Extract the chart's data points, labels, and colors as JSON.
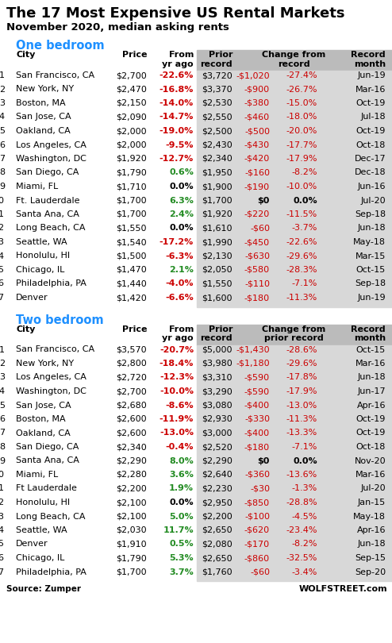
{
  "title": "The 17 Most Expensive US Rental Markets",
  "subtitle": "November 2020, median asking rents",
  "source": "Source: Zumper",
  "watermark": "WOLFSTREET.com",
  "one_bed_label": "One bedroom",
  "two_bed_label": "Two bedroom",
  "one_bed": [
    [
      "San Francisco, CA",
      "$2,700",
      "-22.6%",
      "$3,720",
      "-$1,020",
      "-27.4%",
      "Jun-19"
    ],
    [
      "New York, NY",
      "$2,470",
      "-16.8%",
      "$3,370",
      "-$900",
      "-26.7%",
      "Mar-16"
    ],
    [
      "Boston, MA",
      "$2,150",
      "-14.0%",
      "$2,530",
      "-$380",
      "-15.0%",
      "Oct-19"
    ],
    [
      "San Jose, CA",
      "$2,090",
      "-14.7%",
      "$2,550",
      "-$460",
      "-18.0%",
      "Jul-18"
    ],
    [
      "Oakland, CA",
      "$2,000",
      "-19.0%",
      "$2,500",
      "-$500",
      "-20.0%",
      "Oct-19"
    ],
    [
      "Los Angeles, CA",
      "$2,000",
      "-9.5%",
      "$2,430",
      "-$430",
      "-17.7%",
      "Oct-18"
    ],
    [
      "Washington, DC",
      "$1,920",
      "-12.7%",
      "$2,340",
      "-$420",
      "-17.9%",
      "Dec-17"
    ],
    [
      "San Diego, CA",
      "$1,790",
      "0.6%",
      "$1,950",
      "-$160",
      "-8.2%",
      "Dec-18"
    ],
    [
      "Miami, FL",
      "$1,710",
      "0.0%",
      "$1,900",
      "-$190",
      "-10.0%",
      "Jun-16"
    ],
    [
      "Ft. Lauderdale",
      "$1,700",
      "6.3%",
      "$1,700",
      "$0",
      "0.0%",
      "Jul-20"
    ],
    [
      "Santa Ana, CA",
      "$1,700",
      "2.4%",
      "$1,920",
      "-$220",
      "-11.5%",
      "Sep-18"
    ],
    [
      "Long Beach, CA",
      "$1,550",
      "0.0%",
      "$1,610",
      "-$60",
      "-3.7%",
      "Jun-18"
    ],
    [
      "Seattle, WA",
      "$1,540",
      "-17.2%",
      "$1,990",
      "-$450",
      "-22.6%",
      "May-18"
    ],
    [
      "Honolulu, HI",
      "$1,500",
      "-6.3%",
      "$2,130",
      "-$630",
      "-29.6%",
      "Mar-15"
    ],
    [
      "Chicago, IL",
      "$1,470",
      "2.1%",
      "$2,050",
      "-$580",
      "-28.3%",
      "Oct-15"
    ],
    [
      "Philadelphia, PA",
      "$1,440",
      "-4.0%",
      "$1,550",
      "-$110",
      "-7.1%",
      "Sep-18"
    ],
    [
      "Denver",
      "$1,420",
      "-6.6%",
      "$1,600",
      "-$180",
      "-11.3%",
      "Jun-19"
    ]
  ],
  "two_bed": [
    [
      "San Francisco, CA",
      "$3,570",
      "-20.7%",
      "$5,000",
      "-$1,430",
      "-28.6%",
      "Oct-15"
    ],
    [
      "New York, NY",
      "$2,800",
      "-18.4%",
      "$3,980",
      "-$1,180",
      "-29.6%",
      "Mar-16"
    ],
    [
      "Los Angeles, CA",
      "$2,720",
      "-12.3%",
      "$3,310",
      "-$590",
      "-17.8%",
      "Jun-18"
    ],
    [
      "Washington, DC",
      "$2,700",
      "-10.0%",
      "$3,290",
      "-$590",
      "-17.9%",
      "Jun-17"
    ],
    [
      "San Jose, CA",
      "$2,680",
      "-8.6%",
      "$3,080",
      "-$400",
      "-13.0%",
      "Apr-16"
    ],
    [
      "Boston, MA",
      "$2,600",
      "-11.9%",
      "$2,930",
      "-$330",
      "-11.3%",
      "Oct-19"
    ],
    [
      "Oakland, CA",
      "$2,600",
      "-13.0%",
      "$3,000",
      "-$400",
      "-13.3%",
      "Oct-19"
    ],
    [
      "San Diego, CA",
      "$2,340",
      "-0.4%",
      "$2,520",
      "-$180",
      "-7.1%",
      "Oct-18"
    ],
    [
      "Santa Ana, CA",
      "$2,290",
      "8.0%",
      "$2,290",
      "$0",
      "0.0%",
      "Nov-20"
    ],
    [
      "Miami, FL",
      "$2,280",
      "3.6%",
      "$2,640",
      "-$360",
      "-13.6%",
      "Mar-16"
    ],
    [
      "Ft Lauderdale",
      "$2,200",
      "1.9%",
      "$2,230",
      "-$30",
      "-1.3%",
      "Jul-20"
    ],
    [
      "Honolulu, HI",
      "$2,100",
      "0.0%",
      "$2,950",
      "-$850",
      "-28.8%",
      "Jan-15"
    ],
    [
      "Long Beach, CA",
      "$2,100",
      "5.0%",
      "$2,200",
      "-$100",
      "-4.5%",
      "May-18"
    ],
    [
      "Seattle, WA",
      "$2,030",
      "11.7%",
      "$2,650",
      "-$620",
      "-23.4%",
      "Apr-16"
    ],
    [
      "Denver",
      "$1,910",
      "0.5%",
      "$2,080",
      "-$170",
      "-8.2%",
      "Jun-18"
    ],
    [
      "Chicago, IL",
      "$1,790",
      "5.3%",
      "$2,650",
      "-$860",
      "-32.5%",
      "Sep-15"
    ],
    [
      "Philadelphia, PA",
      "$1,700",
      "3.7%",
      "$1,760",
      "-$60",
      "-3.4%",
      "Sep-20"
    ]
  ],
  "bg_color": "#ffffff",
  "header_bg": "#bbbbbb",
  "row_bg_gray": "#d8d8d8",
  "title_color": "#000000",
  "subtitle_color": "#000000",
  "section_label_color": "#1e90ff",
  "col_header_color": "#000000",
  "city_color": "#000000",
  "price_color": "#000000",
  "red_color": "#cc0000",
  "green_color": "#228B22",
  "black_color": "#000000"
}
